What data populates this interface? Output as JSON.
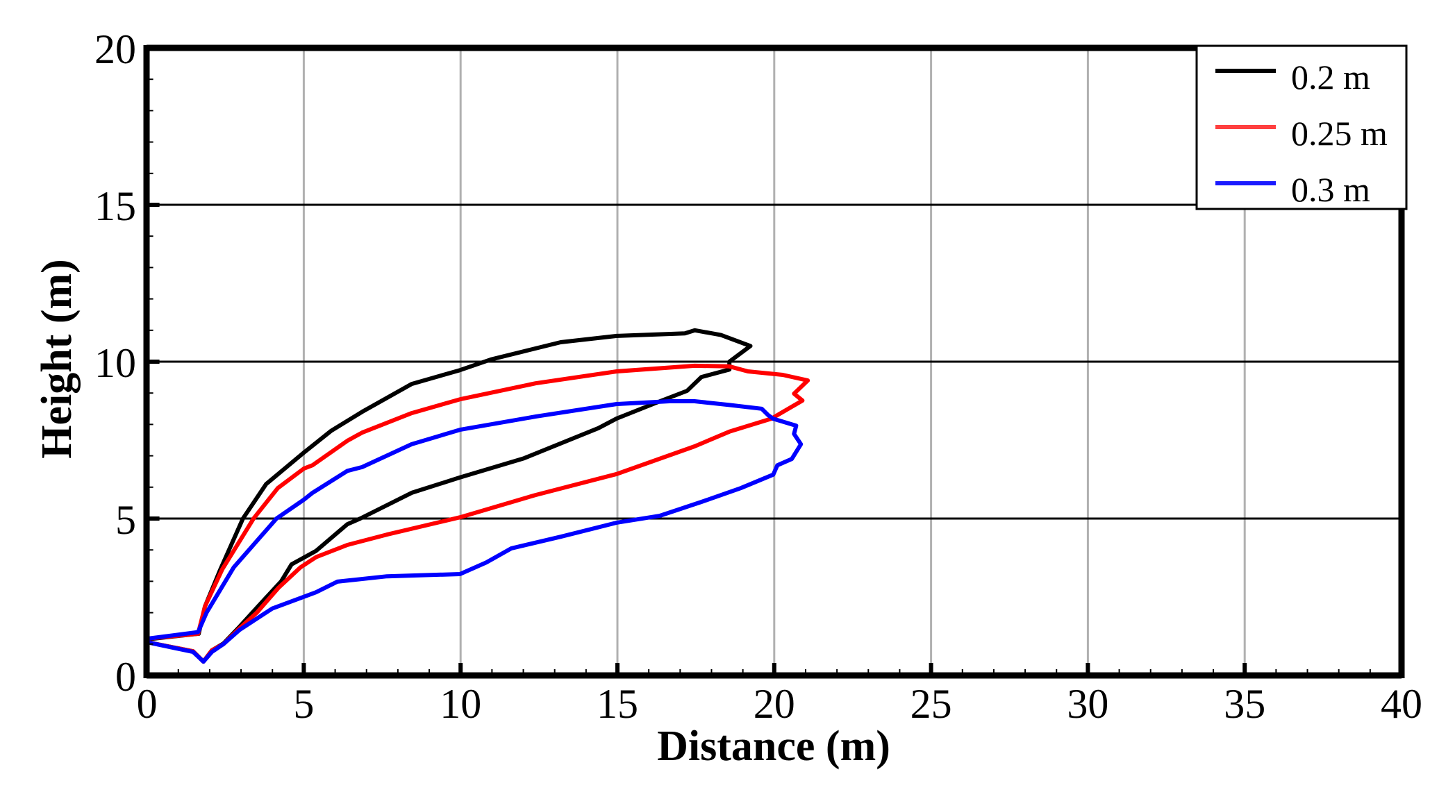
{
  "chart_data": {
    "type": "line",
    "title": "",
    "xlabel": "Distance (m)",
    "ylabel": "Height (m)",
    "xlim": [
      0,
      40
    ],
    "ylim": [
      0,
      20
    ],
    "x_ticks": [
      0,
      5,
      10,
      15,
      20,
      25,
      30,
      35,
      40
    ],
    "y_ticks": [
      0,
      5,
      10,
      15,
      20
    ],
    "grid": {
      "vertical": true,
      "horizontal": true,
      "vertical_color": "#b0b0b0",
      "horizontal_color": "#000000"
    },
    "legend_position": "upper right",
    "series": [
      {
        "name": "0.2 m",
        "color": "#000000",
        "points": [
          [
            0,
            1.15
          ],
          [
            1.65,
            1.33
          ],
          [
            1.85,
            2.2
          ],
          [
            2.34,
            3.38
          ],
          [
            3.06,
            5.0
          ],
          [
            3.8,
            6.1
          ],
          [
            5.0,
            7.1
          ],
          [
            5.88,
            7.8
          ],
          [
            6.86,
            8.4
          ],
          [
            8.44,
            9.29
          ],
          [
            9.98,
            9.73
          ],
          [
            10.97,
            10.07
          ],
          [
            13.19,
            10.62
          ],
          [
            14.98,
            10.82
          ],
          [
            17.15,
            10.9
          ],
          [
            17.47,
            11.0
          ],
          [
            18.3,
            10.85
          ],
          [
            19.24,
            10.5
          ],
          [
            18.57,
            10.0
          ],
          [
            18.57,
            9.75
          ],
          [
            17.68,
            9.51
          ],
          [
            17.22,
            9.07
          ],
          [
            16.36,
            8.74
          ],
          [
            14.98,
            8.19
          ],
          [
            14.39,
            7.88
          ],
          [
            12.02,
            6.92
          ],
          [
            9.98,
            6.31
          ],
          [
            8.44,
            5.82
          ],
          [
            6.8,
            5.0
          ],
          [
            6.39,
            4.82
          ],
          [
            5.39,
            3.97
          ],
          [
            4.61,
            3.54
          ],
          [
            4.28,
            3.0
          ],
          [
            3.55,
            2.21
          ],
          [
            2.95,
            1.55
          ],
          [
            2.44,
            1.02
          ],
          [
            2.07,
            0.8
          ],
          [
            1.8,
            0.44
          ],
          [
            1.47,
            0.77
          ],
          [
            0,
            1.06
          ]
        ]
      },
      {
        "name": "0.25 m",
        "color": "#ff0000",
        "points": [
          [
            0,
            1.17
          ],
          [
            1.63,
            1.33
          ],
          [
            1.85,
            2.2
          ],
          [
            2.4,
            3.38
          ],
          [
            3.4,
            5.0
          ],
          [
            4.17,
            5.97
          ],
          [
            5.0,
            6.59
          ],
          [
            5.28,
            6.7
          ],
          [
            6.39,
            7.48
          ],
          [
            6.86,
            7.74
          ],
          [
            8.44,
            8.36
          ],
          [
            9.98,
            8.8
          ],
          [
            12.39,
            9.31
          ],
          [
            14.98,
            9.69
          ],
          [
            17.46,
            9.87
          ],
          [
            18.57,
            9.85
          ],
          [
            19.16,
            9.69
          ],
          [
            20.27,
            9.58
          ],
          [
            21.07,
            9.4
          ],
          [
            20.63,
            8.98
          ],
          [
            20.9,
            8.76
          ],
          [
            19.9,
            8.18
          ],
          [
            18.57,
            7.77
          ],
          [
            17.46,
            7.3
          ],
          [
            14.98,
            6.42
          ],
          [
            12.39,
            5.75
          ],
          [
            9.98,
            5.04
          ],
          [
            7.65,
            4.49
          ],
          [
            6.39,
            4.16
          ],
          [
            5.39,
            3.77
          ],
          [
            4.9,
            3.45
          ],
          [
            4.2,
            2.8
          ],
          [
            3.5,
            2.0
          ],
          [
            2.95,
            1.5
          ],
          [
            2.44,
            1.0
          ],
          [
            2.07,
            0.8
          ],
          [
            1.8,
            0.44
          ],
          [
            1.47,
            0.77
          ],
          [
            0,
            1.06
          ]
        ]
      },
      {
        "name": "0.3 m",
        "color": "#0000ff",
        "points": [
          [
            0,
            1.17
          ],
          [
            1.63,
            1.38
          ],
          [
            1.9,
            2.0
          ],
          [
            2.77,
            3.45
          ],
          [
            4.13,
            5.0
          ],
          [
            5.0,
            5.6
          ],
          [
            5.28,
            5.82
          ],
          [
            6.39,
            6.52
          ],
          [
            6.86,
            6.64
          ],
          [
            8.44,
            7.37
          ],
          [
            9.98,
            7.83
          ],
          [
            12.39,
            8.25
          ],
          [
            14.98,
            8.65
          ],
          [
            16.66,
            8.74
          ],
          [
            17.46,
            8.74
          ],
          [
            18.57,
            8.62
          ],
          [
            19.6,
            8.5
          ],
          [
            19.8,
            8.3
          ],
          [
            19.97,
            8.18
          ],
          [
            20.7,
            7.96
          ],
          [
            20.63,
            7.7
          ],
          [
            20.85,
            7.37
          ],
          [
            20.56,
            6.9
          ],
          [
            20.1,
            6.7
          ],
          [
            19.97,
            6.4
          ],
          [
            18.93,
            5.97
          ],
          [
            17.68,
            5.53
          ],
          [
            16.36,
            5.09
          ],
          [
            14.98,
            4.87
          ],
          [
            13.19,
            4.42
          ],
          [
            11.62,
            4.05
          ],
          [
            10.82,
            3.6
          ],
          [
            9.98,
            3.23
          ],
          [
            7.65,
            3.16
          ],
          [
            6.07,
            2.99
          ],
          [
            5.39,
            2.65
          ],
          [
            3.99,
            2.13
          ],
          [
            2.95,
            1.45
          ],
          [
            2.44,
            1.0
          ],
          [
            2.07,
            0.75
          ],
          [
            1.8,
            0.44
          ],
          [
            1.47,
            0.75
          ],
          [
            0,
            1.06
          ]
        ]
      }
    ]
  },
  "legend": {
    "items": [
      {
        "label": "0.2 m",
        "color": "#000000"
      },
      {
        "label": "0.25 m",
        "color": "#ff4040"
      },
      {
        "label": "0.3 m",
        "color": "#1a1aff"
      }
    ]
  }
}
